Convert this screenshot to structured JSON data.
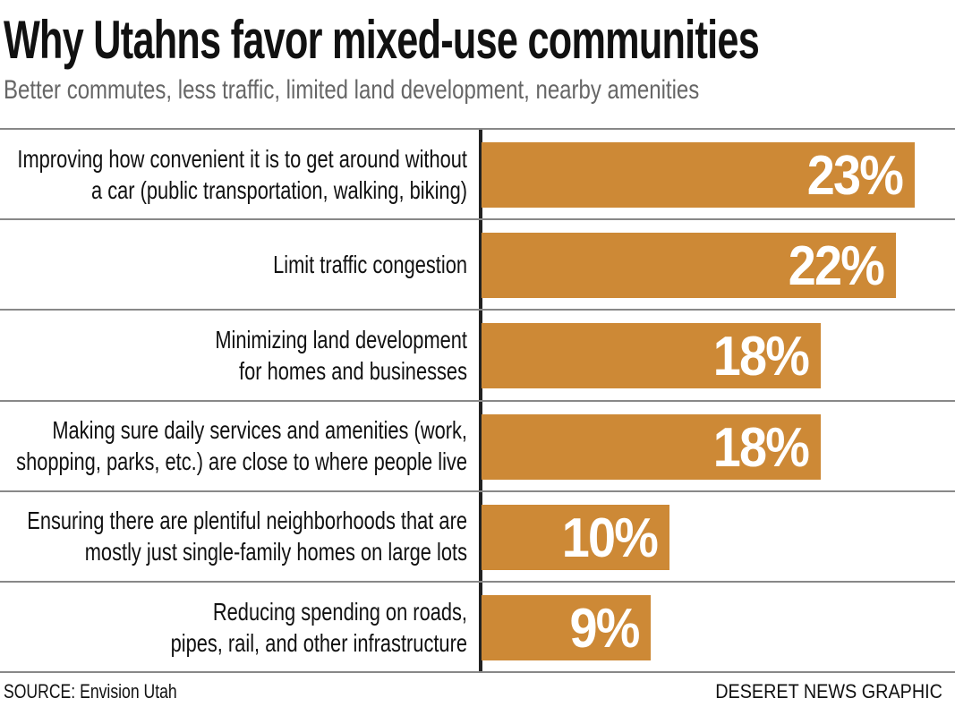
{
  "title": "Why Utahns favor mixed-use communities",
  "subtitle": "Better commutes, less traffic, limited land development, nearby amenities",
  "source": "SOURCE: Envision Utah",
  "credit": "DESERET NEWS GRAPHIC",
  "colors": {
    "bar": "#CD8936",
    "value_text": "#FFFFFF"
  },
  "chart_data": {
    "type": "bar",
    "orientation": "horizontal",
    "title": "Why Utahns favor mixed-use communities",
    "subtitle": "Better commutes, less traffic, limited land development, nearby amenities",
    "categories": [
      [
        "Improving how convenient it is to get around without",
        "a car (public transportation, walking, biking)"
      ],
      [
        "Limit traffic congestion"
      ],
      [
        "Minimizing land development",
        "for homes and businesses"
      ],
      [
        "Making sure daily services and amenities (work,",
        "shopping, parks, etc.) are close to where people live"
      ],
      [
        "Ensuring there are plentiful neighborhoods that are",
        "mostly just single-family homes on large lots"
      ],
      [
        "Reducing spending on roads,",
        "pipes, rail, and other infrastructure"
      ]
    ],
    "values": [
      23,
      22,
      18,
      18,
      10,
      9
    ],
    "value_labels": [
      "23%",
      "22%",
      "18%",
      "18%",
      "10%",
      "9%"
    ],
    "unit": "%",
    "grid": false
  }
}
